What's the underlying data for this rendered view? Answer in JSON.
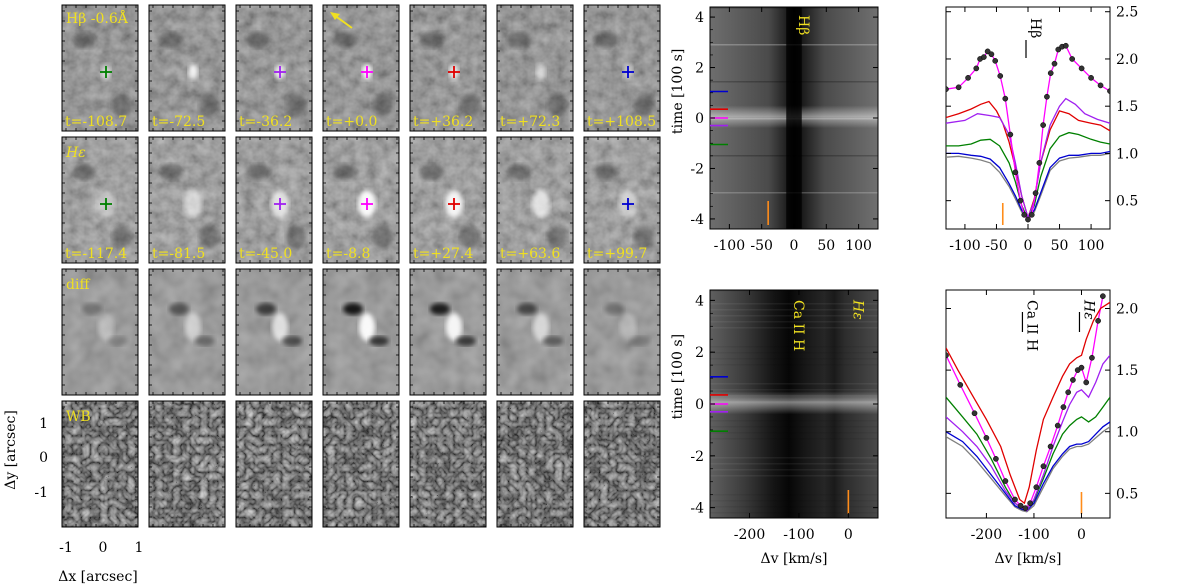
{
  "image_grid": {
    "row_labels": [
      "Hβ -0.6Å",
      "Hε",
      "diff",
      "WB"
    ],
    "row1_times": [
      "t=-108.7",
      "t=-72.5",
      "t=-36.2",
      "t=+0.0",
      "t=+36.2",
      "t=+72.3",
      "t=+108.5"
    ],
    "row2_times": [
      "t=-117.4",
      "t=-81.5",
      "t=-45.0",
      "t=-8.8",
      "t=+27.4",
      "t=+63.6",
      "t=+99.7"
    ],
    "row1_cross_colors": [
      "",
      "",
      "#a020f0",
      "#ff00ff",
      "#e00000",
      "",
      "#0000d0"
    ],
    "row1_first_cross": "#008000",
    "row2_cross_colors": [
      "#008000",
      "",
      "#a020f0",
      "#ff00ff",
      "#e00000",
      "",
      "#0000d0"
    ],
    "arrow_color": "#f0e020",
    "label_color": "#f0e020",
    "xlabel": "Δx [arcsec]",
    "ylabel": "Δy [arcsec]",
    "x_ticks": [
      "-1",
      "0",
      "1"
    ],
    "y_ticks": [
      "1",
      "0",
      "-1"
    ]
  },
  "chart_data": [
    {
      "type": "heatmap",
      "panel": "top-middle",
      "annotation": "Hβ",
      "ylabel": "time [100 s]",
      "xlim": [
        -130,
        130
      ],
      "ylim": [
        -4.4,
        4.4
      ],
      "x_ticks": [
        "-100",
        "-50",
        "0",
        "50",
        "100"
      ],
      "y_ticks": [
        "4",
        "2",
        "0",
        "-2",
        "-4"
      ],
      "time_markers": [
        {
          "t": 1.05,
          "color": "#0000d0"
        },
        {
          "t": 0.35,
          "color": "#e00000"
        },
        {
          "t": 0.0,
          "color": "#ff00ff"
        },
        {
          "t": -0.3,
          "color": "#a020f0"
        },
        {
          "t": -1.05,
          "color": "#008000"
        }
      ],
      "orange_marker_x": -40
    },
    {
      "type": "line",
      "panel": "top-right",
      "annotation": "Hβ",
      "xlim": [
        -130,
        130
      ],
      "ylim": [
        0.2,
        2.55
      ],
      "x_ticks": [
        "-100",
        "-50",
        "0",
        "50",
        "100"
      ],
      "y_ticks": [
        "2.5",
        "2.0",
        "1.5",
        "1.0",
        "0.5"
      ],
      "orange_marker_x": -40,
      "series": [
        {
          "color": "#ff00ff",
          "markers": true,
          "x": [
            -130,
            -110,
            -95,
            -82,
            -76,
            -70,
            -64,
            -58,
            -52,
            -44,
            -36,
            -28,
            -20,
            -12,
            -6,
            0,
            6,
            12,
            18,
            24,
            30,
            36,
            42,
            48,
            54,
            60,
            70,
            85,
            100,
            115,
            130
          ],
          "y": [
            1.68,
            1.7,
            1.8,
            1.9,
            2.0,
            2.02,
            2.08,
            2.05,
            1.98,
            1.82,
            1.58,
            1.2,
            0.8,
            0.5,
            0.35,
            0.3,
            0.35,
            0.58,
            0.9,
            1.3,
            1.6,
            1.85,
            1.95,
            2.1,
            2.13,
            2.14,
            2.0,
            1.9,
            1.8,
            1.72,
            1.66
          ]
        },
        {
          "color": "#a020f0",
          "markers": false,
          "x": [
            -130,
            -100,
            -80,
            -60,
            -45,
            -30,
            -20,
            -10,
            0,
            10,
            20,
            35,
            50,
            60,
            75,
            90,
            110,
            130
          ],
          "y": [
            1.32,
            1.35,
            1.42,
            1.4,
            1.38,
            1.2,
            0.9,
            0.55,
            0.32,
            0.5,
            0.9,
            1.3,
            1.5,
            1.58,
            1.52,
            1.42,
            1.36,
            1.32
          ]
        },
        {
          "color": "#e00000",
          "markers": false,
          "x": [
            -130,
            -110,
            -90,
            -75,
            -62,
            -50,
            -40,
            -30,
            -20,
            -10,
            0,
            10,
            20,
            35,
            50,
            65,
            80,
            100,
            115,
            130
          ],
          "y": [
            1.38,
            1.42,
            1.47,
            1.52,
            1.55,
            1.45,
            1.32,
            1.12,
            0.85,
            0.55,
            0.32,
            0.52,
            0.9,
            1.25,
            1.45,
            1.42,
            1.35,
            1.32,
            1.3,
            1.24
          ]
        },
        {
          "color": "#008000",
          "markers": false,
          "x": [
            -130,
            -110,
            -90,
            -75,
            -60,
            -45,
            -30,
            -20,
            -10,
            0,
            10,
            20,
            35,
            50,
            65,
            80,
            100,
            115,
            130
          ],
          "y": [
            1.08,
            1.08,
            1.1,
            1.14,
            1.15,
            1.08,
            0.9,
            0.7,
            0.45,
            0.3,
            0.45,
            0.75,
            1.05,
            1.18,
            1.22,
            1.2,
            1.15,
            1.12,
            1.1
          ]
        },
        {
          "color": "#0000d0",
          "markers": false,
          "x": [
            -130,
            -110,
            -90,
            -75,
            -60,
            -45,
            -30,
            -20,
            -10,
            0,
            10,
            20,
            35,
            50,
            65,
            80,
            100,
            115,
            130
          ],
          "y": [
            1.0,
            1.0,
            0.98,
            0.97,
            0.94,
            0.85,
            0.68,
            0.55,
            0.4,
            0.32,
            0.4,
            0.58,
            0.85,
            0.95,
            0.98,
            0.98,
            1.0,
            1.0,
            1.02
          ]
        },
        {
          "color": "#808080",
          "markers": false,
          "x": [
            -130,
            -110,
            -90,
            -75,
            -60,
            -45,
            -30,
            -20,
            -10,
            0,
            10,
            20,
            35,
            50,
            65,
            80,
            100,
            115,
            130
          ],
          "y": [
            0.96,
            0.97,
            0.95,
            0.93,
            0.9,
            0.8,
            0.65,
            0.52,
            0.38,
            0.3,
            0.38,
            0.55,
            0.82,
            0.92,
            0.95,
            0.96,
            0.98,
            0.98,
            1.0
          ]
        }
      ]
    },
    {
      "type": "heatmap",
      "panel": "bottom-middle",
      "annotations": [
        "Ca II H",
        "Hε"
      ],
      "ylabel": "time [100 s]",
      "xlabel": "Δv [km/s]",
      "xlim": [
        -280,
        60
      ],
      "ylim": [
        -4.4,
        4.4
      ],
      "x_ticks": [
        "-200",
        "-100",
        "0"
      ],
      "y_ticks": [
        "4",
        "2",
        "0",
        "-2",
        "-4"
      ],
      "time_markers": [
        {
          "t": 1.05,
          "color": "#0000d0"
        },
        {
          "t": 0.35,
          "color": "#e00000"
        },
        {
          "t": 0.0,
          "color": "#ff00ff"
        },
        {
          "t": -0.3,
          "color": "#a020f0"
        },
        {
          "t": -1.05,
          "color": "#008000"
        }
      ],
      "orange_marker_x": 0
    },
    {
      "type": "line",
      "panel": "bottom-right",
      "annotations": [
        "Ca II H",
        "Hε"
      ],
      "xlabel": "Δv [km/s]",
      "xlim": [
        -285,
        60
      ],
      "ylim": [
        0.3,
        2.15
      ],
      "x_ticks": [
        "-200",
        "-100",
        "0"
      ],
      "y_ticks": [
        "2.0",
        "1.5",
        "1.0",
        "0.5"
      ],
      "orange_marker_x": 0,
      "series": [
        {
          "color": "#e00000",
          "markers": false,
          "x": [
            -285,
            -260,
            -230,
            -200,
            -170,
            -150,
            -130,
            -120,
            -110,
            -95,
            -80,
            -60,
            -40,
            -25,
            -10,
            0,
            10,
            25,
            40,
            60
          ],
          "y": [
            1.68,
            1.5,
            1.3,
            1.1,
            0.88,
            0.65,
            0.45,
            0.42,
            0.55,
            0.85,
            1.1,
            1.28,
            1.45,
            1.55,
            1.6,
            1.62,
            1.75,
            1.9,
            2.0,
            2.05
          ]
        },
        {
          "color": "#ff00ff",
          "markers": true,
          "x": [
            -285,
            -255,
            -225,
            -200,
            -180,
            -160,
            -140,
            -128,
            -118,
            -108,
            -95,
            -80,
            -65,
            -50,
            -38,
            -28,
            -18,
            -8,
            0,
            10,
            22,
            35,
            45
          ],
          "y": [
            1.62,
            1.38,
            1.15,
            0.95,
            0.78,
            0.6,
            0.45,
            0.4,
            0.38,
            0.42,
            0.55,
            0.72,
            0.88,
            1.05,
            1.2,
            1.32,
            1.42,
            1.5,
            1.52,
            1.4,
            1.6,
            1.9,
            2.1
          ]
        },
        {
          "color": "#a020f0",
          "markers": false,
          "x": [
            -285,
            -250,
            -220,
            -190,
            -160,
            -140,
            -125,
            -115,
            -100,
            -80,
            -60,
            -40,
            -25,
            -10,
            0,
            15,
            30,
            45,
            60
          ],
          "y": [
            1.12,
            1.0,
            0.88,
            0.72,
            0.52,
            0.42,
            0.38,
            0.36,
            0.45,
            0.65,
            0.88,
            1.08,
            1.22,
            1.32,
            1.34,
            1.28,
            1.4,
            1.55,
            1.62
          ]
        },
        {
          "color": "#008000",
          "markers": false,
          "x": [
            -285,
            -250,
            -220,
            -190,
            -160,
            -140,
            -125,
            -115,
            -100,
            -80,
            -60,
            -40,
            -25,
            -10,
            0,
            15,
            30,
            45,
            60
          ],
          "y": [
            1.28,
            1.12,
            0.98,
            0.78,
            0.55,
            0.42,
            0.38,
            0.37,
            0.44,
            0.62,
            0.82,
            0.98,
            1.05,
            1.1,
            1.12,
            1.08,
            1.12,
            1.2,
            1.28
          ]
        },
        {
          "color": "#0000d0",
          "markers": false,
          "x": [
            -285,
            -250,
            -220,
            -190,
            -160,
            -140,
            -125,
            -115,
            -100,
            -80,
            -60,
            -40,
            -25,
            -10,
            0,
            15,
            30,
            45,
            60
          ],
          "y": [
            1.0,
            0.92,
            0.8,
            0.65,
            0.5,
            0.4,
            0.37,
            0.36,
            0.42,
            0.58,
            0.72,
            0.82,
            0.88,
            0.9,
            0.9,
            0.92,
            0.98,
            1.04,
            1.08
          ]
        },
        {
          "color": "#808080",
          "markers": false,
          "x": [
            -285,
            -250,
            -220,
            -190,
            -160,
            -140,
            -125,
            -115,
            -100,
            -80,
            -60,
            -40,
            -25,
            -10,
            0,
            15,
            30,
            45,
            60
          ],
          "y": [
            0.96,
            0.88,
            0.76,
            0.62,
            0.48,
            0.39,
            0.36,
            0.35,
            0.4,
            0.55,
            0.7,
            0.8,
            0.86,
            0.88,
            0.88,
            0.9,
            0.95,
            1.0,
            1.04
          ]
        }
      ]
    }
  ],
  "texts": {
    "hb_label": "Hβ",
    "ca_label": "Ca II H",
    "he_label": "Hε",
    "time_label": "time [100 s]",
    "dv_label": "Δv [km/s]"
  }
}
